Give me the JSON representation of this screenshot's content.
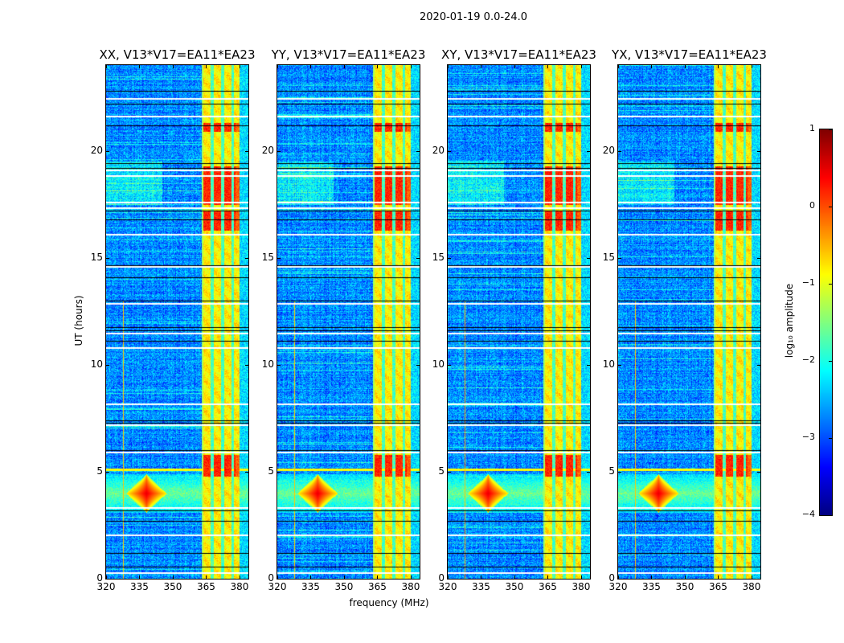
{
  "chart_data": {
    "type": "heatmap",
    "suptitle": "2020-01-19 0.0-24.0",
    "xlabel": "frequency (MHz)",
    "ylabel": "UT (hours)",
    "xlim": [
      320,
      384
    ],
    "ylim": [
      0,
      24
    ],
    "xticks": [
      320,
      335,
      350,
      365,
      380
    ],
    "yticks": [
      0,
      5,
      10,
      15,
      20
    ],
    "panels": [
      {
        "title": "XX, V13*V17=EA11*EA23",
        "seed": 11
      },
      {
        "title": "YY, V13*V17=EA11*EA23",
        "seed": 23
      },
      {
        "title": "XY, V13*V17=EA11*EA23",
        "seed": 37
      },
      {
        "title": "YX, V13*V17=EA11*EA23",
        "seed": 41
      }
    ],
    "colorbar": {
      "label": "log₁₀ amplitude",
      "range": [
        -4,
        1
      ],
      "ticks": [
        1,
        0,
        -1,
        -2,
        -3,
        -4
      ],
      "tick_labels": [
        "1",
        "0",
        "−1",
        "−2",
        "−3",
        "−4"
      ],
      "colormap": "jet"
    },
    "features": {
      "background_level": -2.7,
      "rfi_band_mhz": [
        363,
        380
      ],
      "rfi_level": -0.8,
      "rfi_gaps_mhz": [
        367.5,
        372.3,
        376.8
      ],
      "rfi_bright_hours": [
        [
          17.5,
          19.3
        ],
        [
          4.8,
          5.8
        ],
        [
          20.9,
          21.3
        ],
        [
          16.3,
          17.2
        ]
      ],
      "burst": {
        "freq_mhz": 338,
        "hour": 4.0,
        "level": 0.5
      },
      "flagged_white_hours": [
        0.3,
        2.05,
        3.35,
        5.95,
        7.2,
        8.2,
        10.8,
        11.5,
        12.9,
        14.6,
        16.1,
        17.35,
        17.6,
        18.85,
        19.1,
        21.65,
        22.45
      ],
      "flagged_black_hours": [
        0.55,
        1.2,
        2.7,
        3.2,
        6.0,
        7.3,
        7.4,
        11.1,
        11.6,
        11.75,
        13.0,
        14.1,
        14.65,
        16.8,
        17.2,
        19.2,
        19.4,
        21.2,
        22.2,
        22.8
      ]
    }
  }
}
